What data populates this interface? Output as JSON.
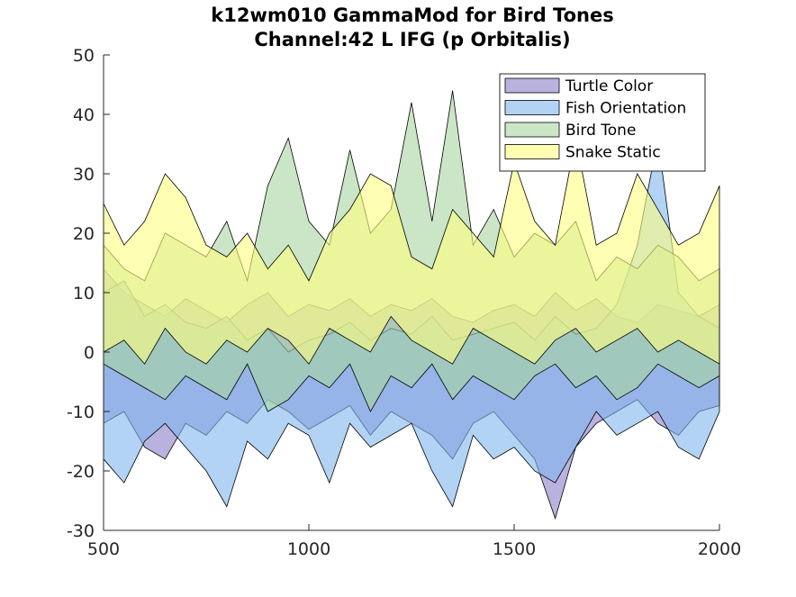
{
  "chart_data": {
    "type": "area",
    "title": "k12wm010 GammaMod for Bird Tones",
    "subtitle": "Channel:42 L IFG (p Orbitalis)",
    "xlabel": "",
    "ylabel": "",
    "xlim": [
      500,
      2000
    ],
    "ylim": [
      -30,
      50
    ],
    "xticks": [
      500,
      1000,
      1500,
      2000
    ],
    "yticks": [
      -30,
      -20,
      -10,
      0,
      10,
      20,
      30,
      40,
      50
    ],
    "grid": false,
    "legend": "top-right",
    "x": [
      500,
      550,
      600,
      650,
      700,
      750,
      800,
      850,
      900,
      950,
      1000,
      1050,
      1100,
      1150,
      1200,
      1250,
      1300,
      1350,
      1400,
      1450,
      1500,
      1550,
      1600,
      1650,
      1700,
      1750,
      1800,
      1850,
      1900,
      1950,
      2000
    ],
    "series": [
      {
        "name": "Turtle Color",
        "color": "#8b7fc9",
        "upper": [
          14,
          10,
          8,
          6,
          9,
          7,
          5,
          8,
          10,
          6,
          8,
          7,
          9,
          6,
          8,
          7,
          9,
          6,
          5,
          7,
          8,
          6,
          10,
          7,
          9,
          6,
          5,
          8,
          7,
          6,
          8
        ],
        "lower": [
          -12,
          -10,
          -16,
          -18,
          -12,
          -14,
          -10,
          -12,
          -8,
          -10,
          -13,
          -11,
          -9,
          -14,
          -10,
          -12,
          -14,
          -18,
          -12,
          -10,
          -14,
          -18,
          -28,
          -16,
          -12,
          -10,
          -8,
          -12,
          -14,
          -10,
          -9
        ]
      },
      {
        "name": "Fish Orientation",
        "color": "#7eb6ec",
        "upper": [
          10,
          12,
          6,
          8,
          5,
          4,
          6,
          2,
          4,
          0,
          2,
          3,
          5,
          2,
          4,
          3,
          6,
          2,
          3,
          4,
          5,
          2,
          6,
          3,
          4,
          8,
          18,
          36,
          10,
          6,
          4
        ],
        "lower": [
          -18,
          -22,
          -15,
          -12,
          -16,
          -20,
          -26,
          -15,
          -18,
          -12,
          -14,
          -22,
          -12,
          -16,
          -14,
          -12,
          -20,
          -26,
          -14,
          -18,
          -16,
          -20,
          -22,
          -16,
          -10,
          -14,
          -12,
          -10,
          -16,
          -18,
          -10
        ]
      },
      {
        "name": "Bird Tone",
        "color": "#a8d6a0",
        "upper": [
          18,
          14,
          12,
          20,
          18,
          16,
          22,
          12,
          28,
          36,
          22,
          18,
          34,
          20,
          24,
          42,
          22,
          44,
          18,
          24,
          16,
          20,
          18,
          22,
          12,
          16,
          14,
          18,
          16,
          12,
          14
        ],
        "lower": [
          -2,
          -4,
          -6,
          -8,
          -4,
          -6,
          -8,
          -2,
          -10,
          -8,
          -4,
          -6,
          -2,
          -10,
          -4,
          -6,
          -2,
          -8,
          -4,
          -6,
          -8,
          -4,
          -2,
          -6,
          -4,
          -8,
          -6,
          -2,
          -4,
          -6,
          -4
        ]
      },
      {
        "name": "Snake Static",
        "color": "#ffff80",
        "upper": [
          25,
          18,
          22,
          30,
          26,
          18,
          16,
          20,
          14,
          18,
          12,
          20,
          24,
          30,
          28,
          16,
          14,
          24,
          20,
          16,
          32,
          22,
          18,
          36,
          18,
          20,
          30,
          24,
          18,
          20,
          28
        ],
        "lower": [
          0,
          2,
          -2,
          4,
          0,
          -2,
          2,
          0,
          4,
          2,
          -2,
          4,
          2,
          0,
          6,
          2,
          0,
          -2,
          4,
          2,
          0,
          -2,
          2,
          4,
          0,
          2,
          4,
          0,
          2,
          0,
          -2
        ]
      }
    ]
  }
}
